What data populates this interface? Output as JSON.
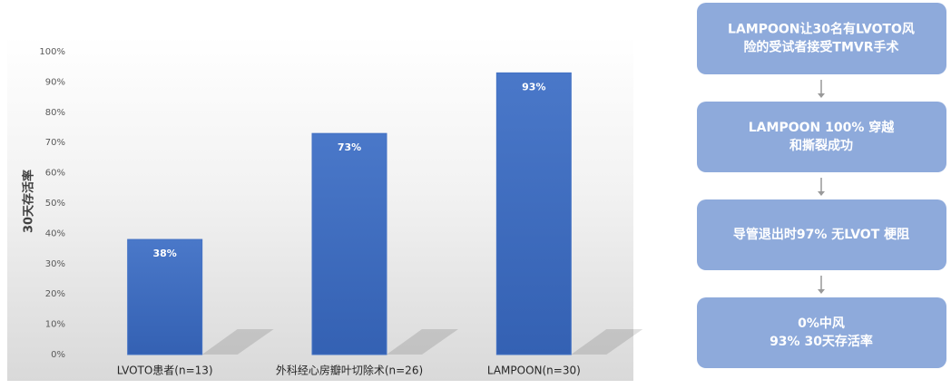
{
  "chart_data": {
    "type": "bar",
    "y_label": "30天存活率",
    "categories": [
      "LVOTO患者(n=13)",
      "外科经心房瓣叶切除术(n=26)",
      "LAMPOON(n=30)"
    ],
    "values": [
      38,
      73,
      93
    ],
    "value_labels": [
      "38%",
      "73%",
      "93%"
    ],
    "color": "#4472c4",
    "ylim": [
      0,
      100
    ],
    "yticks": [
      {
        "value": 0,
        "label": "0%"
      },
      {
        "value": 10,
        "label": "10%"
      },
      {
        "value": 20,
        "label": "20%"
      },
      {
        "value": 30,
        "label": "30%"
      },
      {
        "value": 40,
        "label": "40%"
      },
      {
        "value": 50,
        "label": "50%"
      },
      {
        "value": 60,
        "label": "60%"
      },
      {
        "value": 70,
        "label": "70%"
      },
      {
        "value": 80,
        "label": "80%"
      },
      {
        "value": 90,
        "label": "90%"
      },
      {
        "value": 100,
        "label": "100%"
      }
    ],
    "grid": false
  },
  "flowchart": {
    "steps": [
      [
        "LAMPOON让30名有LVOTO风",
        "险的受试者接受TMVR手术"
      ],
      [
        "LAMPOON 100% 穿越",
        "和撕裂成功"
      ],
      [
        "导管退出时97% 无LVOT 梗阻"
      ],
      [
        "0%中风",
        "93% 30天存活率"
      ]
    ]
  }
}
